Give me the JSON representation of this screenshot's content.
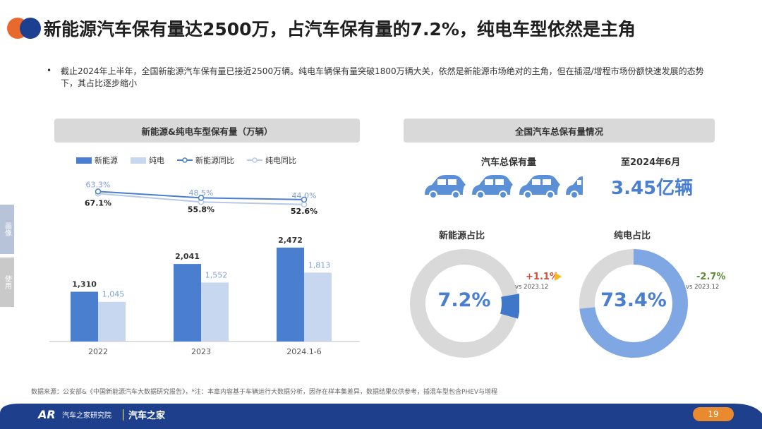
{
  "title": "新能源汽车保有量达2500万，占汽车保有量的7.2%，纯电车型依然是主角",
  "bullet": "截止2024年上半年，全国新能源汽车保有量已接近2500万辆。纯电车辆保有量突破1800万辆大关，依然是新能源市场绝对的主角，但在插混/增程市场份额快速发展的态势下，其占比逐步缩小",
  "left_panel": {
    "heading": "新能源&纯电车型保有量（万辆）",
    "legend": {
      "nev": "新能源",
      "bev": "纯电",
      "nev_yoy": "新能源同比",
      "bev_yoy": "纯电同比"
    }
  },
  "side_tabs": [
    "画像",
    "使用"
  ],
  "right_panel": {
    "heading": "全国汽车总保有量情况",
    "total_label": "汽车总保有量",
    "date_label": "至2024年6月",
    "total_value": "3.45亿辆",
    "nev_share": {
      "title": "新能源占比",
      "value": "7.2%",
      "change": "+1.1%",
      "vs": "vs 2023.12",
      "fraction": 0.072
    },
    "bev_share": {
      "title": "纯电占比",
      "value": "73.4%",
      "change": "-2.7%",
      "vs": "vs 2023.12",
      "fraction": 0.734
    }
  },
  "footer": {
    "source": "数据来源：公安部&《中国新能源汽车大数据研究报告》，*注：本章内容基于车辆运行大数据分析，因存在样本集差异，数据结果仅供参考，插混车型包含PHEV与增程",
    "brand": "汽车之家研究院",
    "brand2": "汽车之家",
    "page": "19"
  },
  "colors": {
    "nev": "#4a7fd0",
    "bev": "#c8d7f0",
    "accent": "#e98a2e",
    "navy": "#1e3f8c",
    "grey_ring": "#d9d9d9"
  },
  "chart_data": {
    "type": "bar",
    "categories": [
      "2022",
      "2023",
      "2024.1-6"
    ],
    "series": [
      {
        "name": "新能源",
        "values": [
          1310,
          2041,
          2472
        ]
      },
      {
        "name": "纯电",
        "values": [
          1045,
          1552,
          1813
        ]
      }
    ],
    "line_series": [
      {
        "name": "新能源同比",
        "values": [
          67.1,
          55.8,
          52.6
        ],
        "unit": "%"
      },
      {
        "name": "纯电同比",
        "values": [
          63.3,
          48.5,
          44.0
        ],
        "unit": "%"
      }
    ],
    "bar_labels": {
      "nev": [
        "1,310",
        "2,041",
        "2,472"
      ],
      "bev": [
        "1,045",
        "1,552",
        "1,813"
      ]
    },
    "line_labels": {
      "nev_yoy": [
        "67.1%",
        "55.8%",
        "52.6%"
      ],
      "bev_yoy": [
        "63.3%",
        "48.5%",
        "44.0%"
      ]
    },
    "title": "新能源&纯电车型保有量（万辆）",
    "ylim": [
      0,
      2600
    ]
  }
}
